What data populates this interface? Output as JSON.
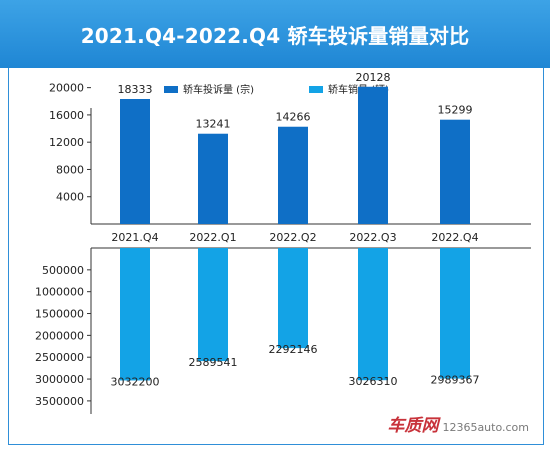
{
  "header": {
    "title": "2021.Q4-2022.Q4 轿车投诉量销量对比"
  },
  "watermark": {
    "logo_text": "车质网",
    "url": "12365auto.com"
  },
  "colors": {
    "header": "#2a93dc",
    "complaints": "#0f6fc6",
    "sales": "#13a3e6",
    "axis": "#333333"
  },
  "chart_data": {
    "type": "bar",
    "title": "2021.Q4-2022.Q4 轿车投诉量销量对比",
    "categories": [
      "2021.Q4",
      "2022.Q1",
      "2022.Q2",
      "2022.Q3",
      "2022.Q4"
    ],
    "legend_position": "top",
    "series": [
      {
        "name": "轿车投诉量 (宗)",
        "values": [
          18333,
          13241,
          14266,
          20128,
          15299
        ],
        "direction": "up",
        "color": "#0f6fc6"
      },
      {
        "name": "轿车销量 (辆)",
        "values": [
          3032200,
          2589541,
          2292146,
          3026310,
          2989367
        ],
        "direction": "down",
        "color": "#13a3e6"
      }
    ],
    "upper_axis": {
      "ylim": [
        0,
        22000
      ],
      "ticks": [
        "4000",
        "8000",
        "12000",
        "16000",
        "20000"
      ]
    },
    "lower_axis": {
      "ylim": [
        0,
        3800000
      ],
      "ticks": [
        "500000",
        "1000000",
        "1500000",
        "2000000",
        "2500000",
        "3000000",
        "3500000"
      ]
    },
    "grid": false
  }
}
